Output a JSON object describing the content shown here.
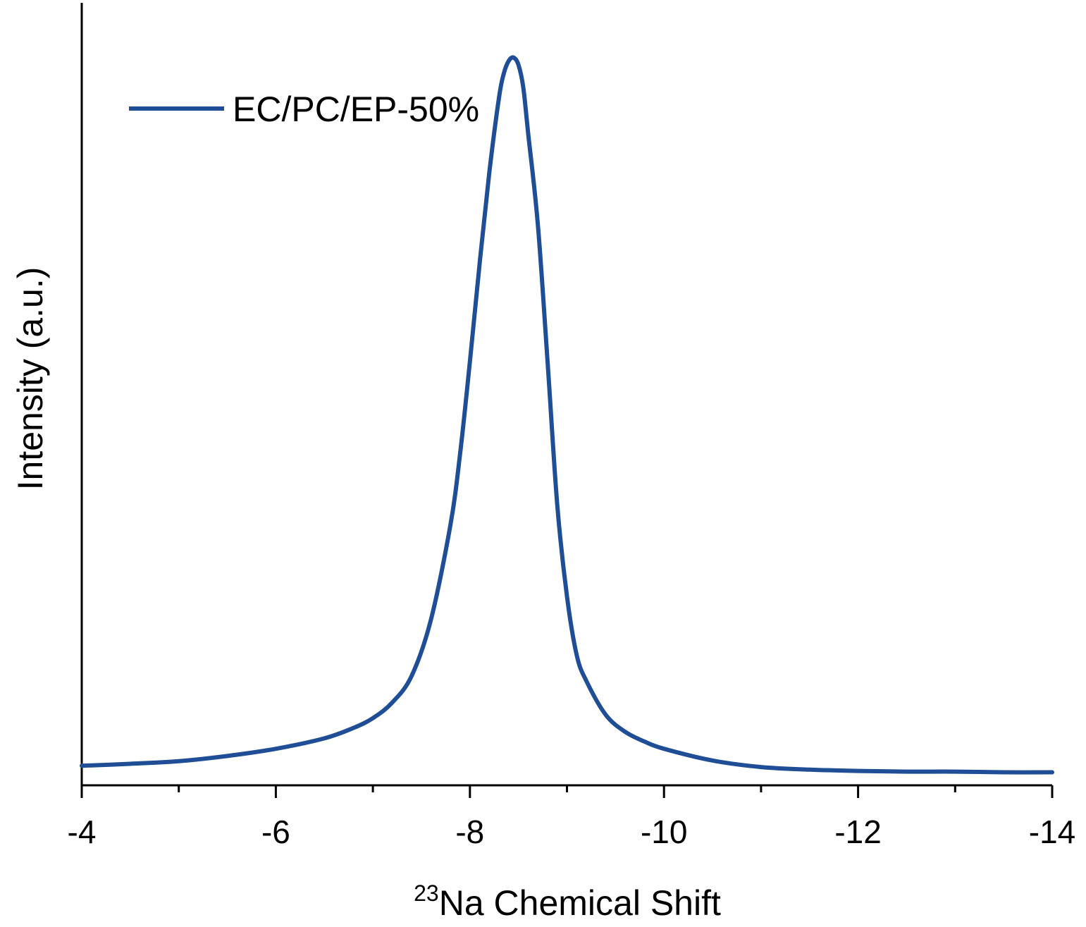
{
  "chart_data": {
    "type": "line",
    "xlabel_sup": "23",
    "xlabel_main": "Na Chemical Shift",
    "ylabel": "Intensity (a.u.)",
    "xlim": [
      -4,
      -14
    ],
    "x_reversed": true,
    "x_ticks": [
      {
        "value": -4,
        "label": "-4"
      },
      {
        "value": -6,
        "label": "-6"
      },
      {
        "value": -8,
        "label": "-8"
      },
      {
        "value": -10,
        "label": "-10"
      },
      {
        "value": -12,
        "label": "-12"
      },
      {
        "value": -14,
        "label": "-14"
      }
    ],
    "x_minor_ticks": [
      -5,
      -7,
      -9,
      -11,
      -13
    ],
    "y_ticks_shown": false,
    "ylim": [
      0,
      1.2
    ],
    "legend_position": "top-left",
    "grid": false,
    "series": [
      {
        "name": "EC/PC/EP-50%",
        "color": "#1f4e96",
        "x": [
          -4.0,
          -4.5,
          -5.0,
          -5.5,
          -6.0,
          -6.5,
          -6.8,
          -7.0,
          -7.2,
          -7.4,
          -7.6,
          -7.8,
          -7.9,
          -8.0,
          -8.1,
          -8.2,
          -8.3,
          -8.35,
          -8.4,
          -8.45,
          -8.5,
          -8.55,
          -8.6,
          -8.7,
          -8.8,
          -8.9,
          -9.0,
          -9.1,
          -9.2,
          -9.4,
          -9.6,
          -9.8,
          -10.0,
          -10.5,
          -11.0,
          -11.5,
          -12.0,
          -12.5,
          -13.0,
          -13.5,
          -14.0
        ],
        "y": [
          0.03,
          0.033,
          0.037,
          0.045,
          0.056,
          0.072,
          0.088,
          0.103,
          0.127,
          0.168,
          0.255,
          0.4,
          0.51,
          0.65,
          0.8,
          0.94,
          1.055,
          1.092,
          1.111,
          1.116,
          1.105,
          1.07,
          1.0,
          0.86,
          0.65,
          0.43,
          0.29,
          0.2,
          0.16,
          0.108,
          0.082,
          0.067,
          0.056,
          0.038,
          0.028,
          0.024,
          0.022,
          0.021,
          0.021,
          0.02,
          0.02
        ]
      }
    ]
  }
}
